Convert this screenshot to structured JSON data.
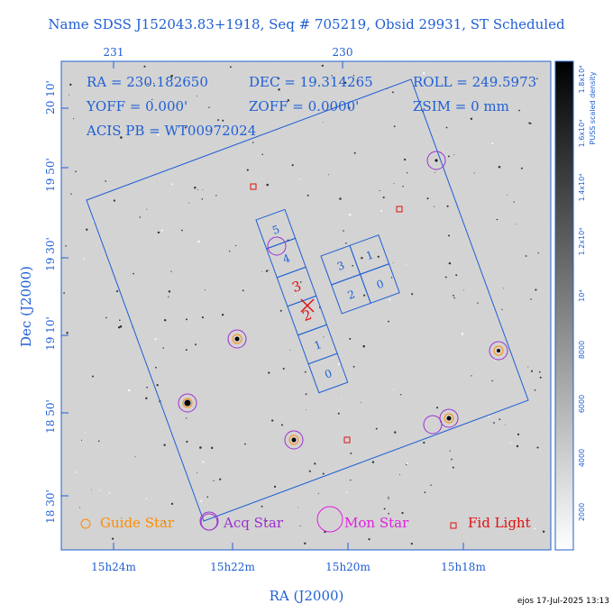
{
  "title": "Name SDSS J152043.83+1918, Seq # 705219, Obsid 29931, ST Scheduled",
  "info": {
    "ra": "RA = 230.182650",
    "dec": "DEC = 19.314265",
    "roll": "ROLL = 249.5973",
    "yoff": "YOFF = 0.000'",
    "zoff": "ZOFF = 0.0000'",
    "zsim": "ZSIM = 0 mm",
    "acis": "ACIS PB = WT00972024"
  },
  "axes": {
    "top_ticks": [
      "231",
      "230"
    ],
    "bottom_ticks": [
      "15h24m",
      "15h22m",
      "15h20m",
      "15h18m"
    ],
    "left_ticks": [
      "20 10'",
      "19 50'",
      "19 30'",
      "19 10'",
      "18 50'",
      "18 30'"
    ],
    "xlabel": "RA (J2000)",
    "ylabel": "Dec (J2000)"
  },
  "colorbar": {
    "label": "PUSS scaled density",
    "ticks": [
      "2000",
      "4000",
      "6000",
      "8000",
      "10⁴",
      "1.2x10⁴",
      "1.4x10⁴",
      "1.6x10⁴",
      "1.8x10⁴"
    ]
  },
  "chips": [
    "5",
    "4",
    "3",
    "2",
    "1",
    "0",
    "3",
    "1",
    "2",
    "0"
  ],
  "legend": {
    "guide": "Guide Star",
    "acq": "Acq Star",
    "mon": "Mon Star",
    "fid": "Fid Light"
  },
  "colors": {
    "axis": "#1f5fd4",
    "guide": "#ff8c00",
    "acq": "#9b30d0",
    "mon": "#e020e0",
    "fid": "#e01010",
    "aimpoint": "#e01010"
  },
  "footer": "ejos 17-Jul-2025 13:13"
}
